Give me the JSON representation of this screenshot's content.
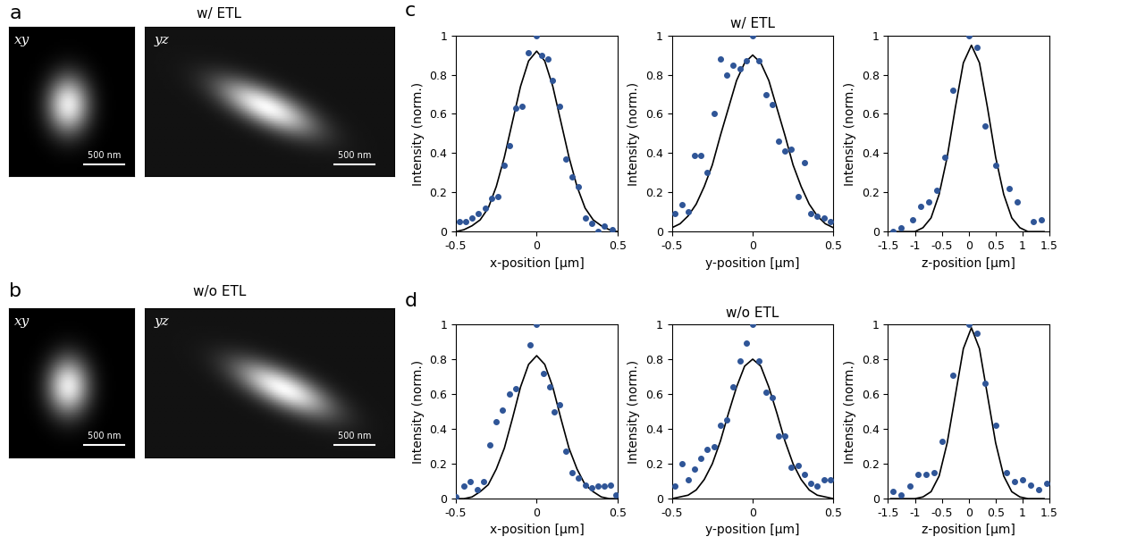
{
  "image_panels": [
    {
      "label": "a",
      "title": "w/ ETL",
      "views": [
        "xy",
        "yz"
      ],
      "scale_bars": [
        "500 nm",
        "500 nm"
      ]
    },
    {
      "label": "b",
      "title": "w/o ETL",
      "views": [
        "xy",
        "yz"
      ],
      "scale_bars": [
        "500 nm",
        "500 nm"
      ]
    }
  ],
  "chart_panels": [
    {
      "label": "c",
      "title": "w/ ETL"
    },
    {
      "label": "d",
      "title": "w/o ETL"
    }
  ],
  "chart_data": [
    {
      "type": "scatter",
      "xlabel": "x-position [μm]",
      "ylabel": "Intensity (norm.)",
      "xlim": [
        -0.5,
        0.5
      ],
      "xticks": [
        -0.5,
        0,
        0.5
      ],
      "ylim": [
        0,
        1
      ],
      "yticks": [
        0,
        0.2,
        0.4,
        0.6,
        0.8,
        1
      ],
      "series": [
        {
          "type": "scatter",
          "color": "#2f5597",
          "marker": "o",
          "x": [
            -0.48,
            -0.44,
            -0.4,
            -0.36,
            -0.32,
            -0.28,
            -0.24,
            -0.2,
            -0.17,
            -0.13,
            -0.09,
            -0.05,
            0.0,
            0.03,
            0.07,
            0.1,
            0.14,
            0.18,
            0.22,
            0.26,
            0.3,
            0.34,
            0.38,
            0.42,
            0.47
          ],
          "values": [
            0.05,
            0.05,
            0.07,
            0.09,
            0.12,
            0.17,
            0.18,
            0.34,
            0.44,
            0.63,
            0.64,
            0.91,
            1.0,
            0.9,
            0.88,
            0.77,
            0.64,
            0.37,
            0.28,
            0.23,
            0.07,
            0.04,
            0.0,
            0.03,
            0.01
          ]
        },
        {
          "type": "line",
          "color": "#000000",
          "line_style": "solid",
          "x": [
            -0.5,
            -0.45,
            -0.4,
            -0.35,
            -0.3,
            -0.25,
            -0.2,
            -0.15,
            -0.1,
            -0.05,
            0.0,
            0.05,
            0.1,
            0.15,
            0.2,
            0.25,
            0.3,
            0.35,
            0.4,
            0.45,
            0.5
          ],
          "values": [
            0.0,
            0.01,
            0.03,
            0.06,
            0.12,
            0.23,
            0.38,
            0.56,
            0.74,
            0.87,
            0.92,
            0.87,
            0.74,
            0.56,
            0.38,
            0.23,
            0.12,
            0.06,
            0.03,
            0.01,
            0.0
          ]
        }
      ]
    },
    {
      "type": "scatter",
      "xlabel": "y-position [μm]",
      "ylabel": "Intensity (norm.)",
      "xlim": [
        -0.5,
        0.5
      ],
      "xticks": [
        -0.5,
        0,
        0.5
      ],
      "ylim": [
        0,
        1
      ],
      "yticks": [
        0,
        0.2,
        0.4,
        0.6,
        0.8,
        1
      ],
      "series": [
        {
          "type": "scatter",
          "color": "#2f5597",
          "marker": "o",
          "x": [
            -0.48,
            -0.44,
            -0.4,
            -0.36,
            -0.32,
            -0.28,
            -0.24,
            -0.2,
            -0.16,
            -0.12,
            -0.08,
            -0.04,
            0.0,
            0.04,
            0.08,
            0.12,
            0.16,
            0.2,
            0.24,
            0.28,
            0.32,
            0.36,
            0.4,
            0.44,
            0.48
          ],
          "values": [
            0.09,
            0.14,
            0.1,
            0.39,
            0.39,
            0.3,
            0.6,
            0.88,
            0.8,
            0.85,
            0.83,
            0.87,
            1.0,
            0.87,
            0.7,
            0.65,
            0.46,
            0.41,
            0.42,
            0.18,
            0.35,
            0.09,
            0.08,
            0.07,
            0.05
          ]
        },
        {
          "type": "line",
          "color": "#000000",
          "line_style": "solid",
          "x": [
            -0.5,
            -0.45,
            -0.4,
            -0.35,
            -0.3,
            -0.25,
            -0.2,
            -0.15,
            -0.1,
            -0.05,
            0.0,
            0.05,
            0.1,
            0.15,
            0.2,
            0.25,
            0.3,
            0.35,
            0.4,
            0.45,
            0.5
          ],
          "values": [
            0.02,
            0.04,
            0.08,
            0.14,
            0.23,
            0.34,
            0.49,
            0.63,
            0.77,
            0.86,
            0.9,
            0.86,
            0.77,
            0.63,
            0.49,
            0.34,
            0.23,
            0.14,
            0.08,
            0.04,
            0.02
          ]
        }
      ]
    },
    {
      "type": "scatter",
      "xlabel": "z-position [μm]",
      "ylabel": "Intensity (norm.)",
      "xlim": [
        -1.5,
        1.5
      ],
      "xticks": [
        -1.5,
        -1,
        -0.5,
        0,
        0.5,
        1,
        1.5
      ],
      "ylim": [
        0,
        1
      ],
      "yticks": [
        0,
        0.2,
        0.4,
        0.6,
        0.8,
        1
      ],
      "series": [
        {
          "type": "scatter",
          "color": "#2f5597",
          "marker": "o",
          "x": [
            -1.4,
            -1.25,
            -1.05,
            -0.9,
            -0.75,
            -0.6,
            -0.45,
            -0.3,
            0.0,
            0.15,
            0.3,
            0.5,
            0.75,
            0.9,
            1.2,
            1.35
          ],
          "values": [
            0.0,
            0.02,
            0.06,
            0.13,
            0.15,
            0.21,
            0.38,
            0.72,
            1.0,
            0.94,
            0.54,
            0.34,
            0.22,
            0.15,
            0.05,
            0.06
          ]
        },
        {
          "type": "line",
          "color": "#000000",
          "line_style": "solid",
          "x": [
            -1.45,
            -1.3,
            -1.15,
            -1.0,
            -0.85,
            -0.7,
            -0.55,
            -0.4,
            -0.25,
            -0.1,
            0.05,
            0.2,
            0.35,
            0.5,
            0.65,
            0.8,
            0.95,
            1.1,
            1.25,
            1.4
          ],
          "values": [
            0.0,
            0.0,
            0.0,
            0.0,
            0.02,
            0.07,
            0.19,
            0.38,
            0.63,
            0.86,
            0.95,
            0.86,
            0.63,
            0.38,
            0.19,
            0.07,
            0.02,
            0.0,
            0.0,
            0.0
          ]
        }
      ]
    },
    {
      "type": "scatter",
      "xlabel": "x-position [μm]",
      "ylabel": "Intensity (norm.)",
      "xlim": [
        -0.5,
        0.5
      ],
      "xticks": [
        -0.5,
        0,
        0.5
      ],
      "ylim": [
        0,
        1
      ],
      "yticks": [
        0,
        0.2,
        0.4,
        0.6,
        0.8,
        1
      ],
      "series": [
        {
          "type": "scatter",
          "color": "#2f5597",
          "marker": "o",
          "x": [
            -0.5,
            -0.45,
            -0.41,
            -0.37,
            -0.33,
            -0.29,
            -0.25,
            -0.21,
            -0.17,
            -0.13,
            -0.04,
            0.0,
            0.04,
            0.08,
            0.11,
            0.14,
            0.18,
            0.22,
            0.26,
            0.3,
            0.34,
            0.38,
            0.42,
            0.46,
            0.49
          ],
          "values": [
            0.01,
            0.07,
            0.1,
            0.05,
            0.1,
            0.31,
            0.44,
            0.51,
            0.6,
            0.63,
            0.88,
            1.0,
            0.72,
            0.64,
            0.5,
            0.54,
            0.27,
            0.15,
            0.12,
            0.08,
            0.06,
            0.07,
            0.07,
            0.08,
            0.02
          ]
        },
        {
          "type": "line",
          "color": "#000000",
          "line_style": "solid",
          "x": [
            -0.5,
            -0.45,
            -0.4,
            -0.35,
            -0.3,
            -0.25,
            -0.2,
            -0.15,
            -0.1,
            -0.05,
            0.0,
            0.05,
            0.1,
            0.15,
            0.2,
            0.25,
            0.3,
            0.35,
            0.4,
            0.45,
            0.5
          ],
          "values": [
            0.0,
            0.0,
            0.01,
            0.04,
            0.08,
            0.17,
            0.29,
            0.46,
            0.64,
            0.77,
            0.82,
            0.77,
            0.64,
            0.46,
            0.29,
            0.17,
            0.08,
            0.04,
            0.01,
            0.0,
            0.0
          ]
        }
      ]
    },
    {
      "type": "scatter",
      "xlabel": "y-position [μm]",
      "ylabel": "Intensity (norm.)",
      "xlim": [
        -0.5,
        0.5
      ],
      "xticks": [
        -0.5,
        0,
        0.5
      ],
      "ylim": [
        0,
        1
      ],
      "yticks": [
        0,
        0.2,
        0.4,
        0.6,
        0.8,
        1
      ],
      "series": [
        {
          "type": "scatter",
          "color": "#2f5597",
          "marker": "o",
          "x": [
            -0.48,
            -0.44,
            -0.4,
            -0.36,
            -0.32,
            -0.28,
            -0.24,
            -0.2,
            -0.16,
            -0.12,
            -0.08,
            -0.04,
            0.0,
            0.04,
            0.08,
            0.12,
            0.16,
            0.2,
            0.24,
            0.28,
            0.32,
            0.36,
            0.4,
            0.44,
            0.48
          ],
          "values": [
            0.07,
            0.2,
            0.11,
            0.17,
            0.23,
            0.28,
            0.3,
            0.42,
            0.45,
            0.64,
            0.79,
            0.89,
            1.0,
            0.79,
            0.61,
            0.58,
            0.36,
            0.36,
            0.18,
            0.19,
            0.14,
            0.09,
            0.07,
            0.11,
            0.11
          ]
        },
        {
          "type": "line",
          "color": "#000000",
          "line_style": "solid",
          "x": [
            -0.5,
            -0.45,
            -0.4,
            -0.35,
            -0.3,
            -0.25,
            -0.2,
            -0.15,
            -0.1,
            -0.05,
            0.0,
            0.05,
            0.1,
            0.15,
            0.2,
            0.25,
            0.3,
            0.35,
            0.4,
            0.45,
            0.5
          ],
          "values": [
            0.0,
            0.01,
            0.02,
            0.05,
            0.11,
            0.2,
            0.33,
            0.49,
            0.64,
            0.76,
            0.8,
            0.76,
            0.64,
            0.49,
            0.33,
            0.2,
            0.11,
            0.05,
            0.02,
            0.01,
            0.0
          ]
        }
      ]
    },
    {
      "type": "scatter",
      "xlabel": "z-position [μm]",
      "ylabel": "Intensity (norm.)",
      "xlim": [
        -1.5,
        1.5
      ],
      "xticks": [
        -1.5,
        -1,
        -0.5,
        0,
        0.5,
        1,
        1.5
      ],
      "ylim": [
        0,
        1
      ],
      "yticks": [
        0,
        0.2,
        0.4,
        0.6,
        0.8,
        1
      ],
      "series": [
        {
          "type": "scatter",
          "color": "#2f5597",
          "marker": "o",
          "x": [
            -1.4,
            -1.25,
            -1.1,
            -0.95,
            -0.8,
            -0.65,
            -0.5,
            -0.3,
            0.0,
            0.15,
            0.3,
            0.5,
            0.7,
            0.85,
            1.0,
            1.15,
            1.3,
            1.45
          ],
          "values": [
            0.04,
            0.02,
            0.07,
            0.14,
            0.14,
            0.15,
            0.33,
            0.71,
            1.0,
            0.95,
            0.66,
            0.42,
            0.15,
            0.1,
            0.11,
            0.08,
            0.05,
            0.09
          ]
        },
        {
          "type": "line",
          "color": "#000000",
          "line_style": "solid",
          "x": [
            -1.45,
            -1.3,
            -1.15,
            -1.0,
            -0.85,
            -0.7,
            -0.55,
            -0.4,
            -0.25,
            -0.1,
            0.05,
            0.2,
            0.35,
            0.5,
            0.65,
            0.8,
            0.95,
            1.1,
            1.25,
            1.4
          ],
          "values": [
            0.0,
            0.0,
            0.0,
            0.0,
            0.01,
            0.04,
            0.13,
            0.32,
            0.59,
            0.86,
            0.98,
            0.86,
            0.59,
            0.32,
            0.13,
            0.04,
            0.01,
            0.0,
            0.0,
            0.0
          ]
        }
      ]
    }
  ]
}
